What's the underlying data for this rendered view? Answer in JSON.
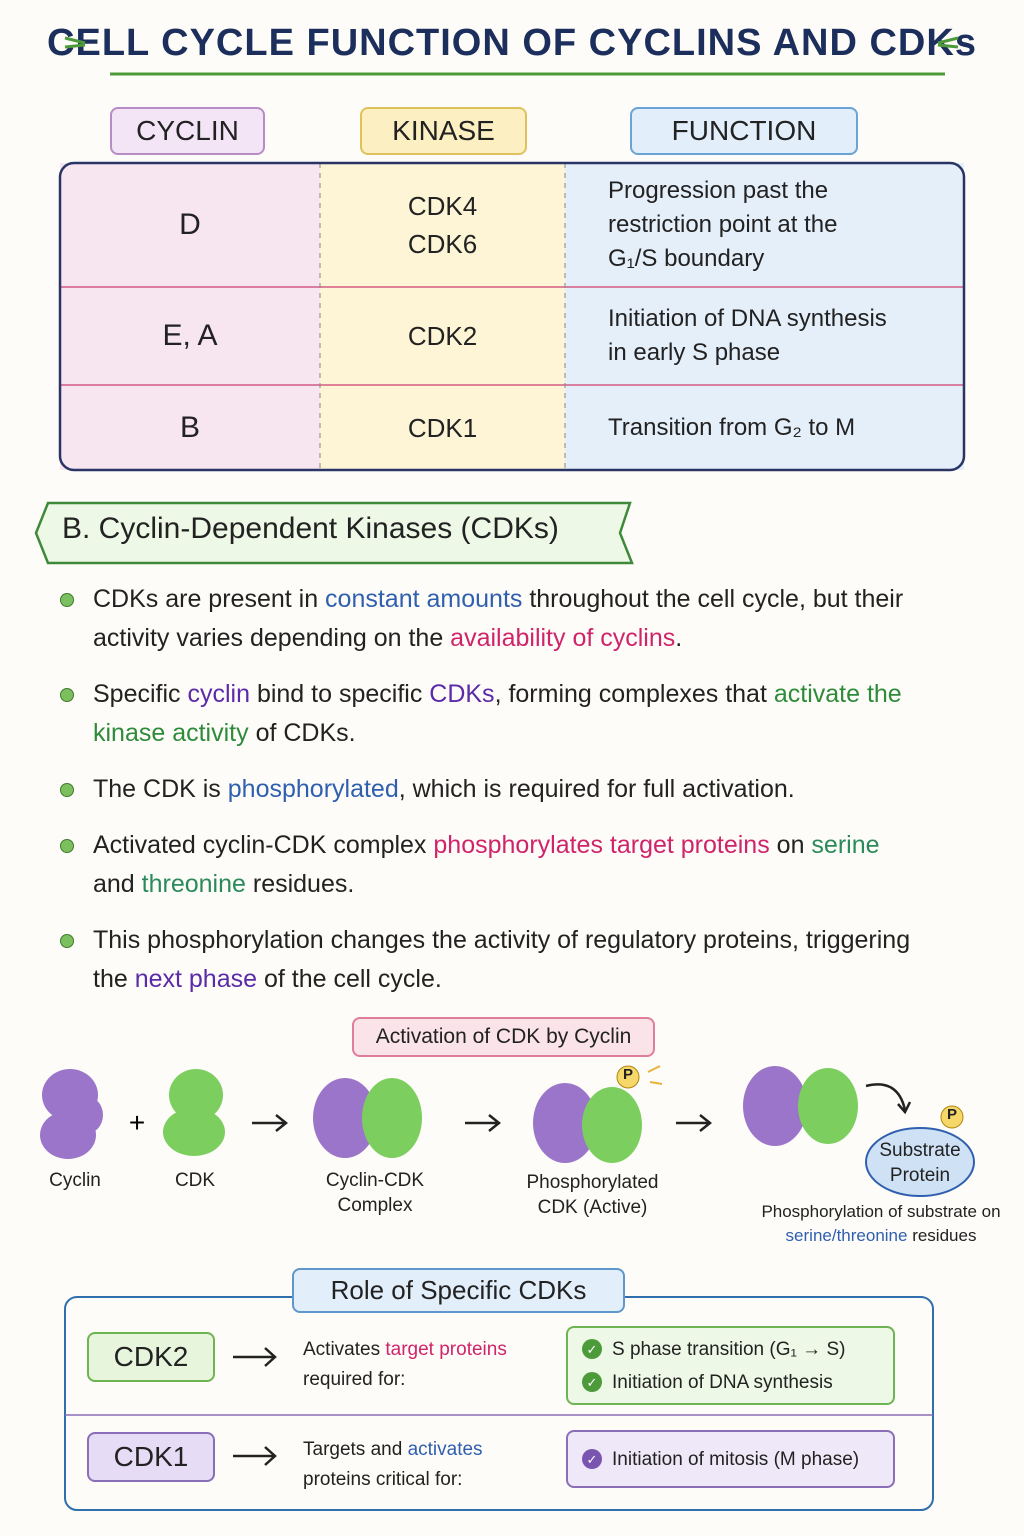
{
  "title": "CELL CYCLE FUNCTION OF CYCLINS AND CDKs",
  "table": {
    "headers": [
      "CYCLIN",
      "KINASE",
      "FUNCTION"
    ],
    "rows": [
      {
        "cyclin": "D",
        "kinase": [
          "CDK4",
          "CDK6"
        ],
        "function": [
          "Progression past the",
          "restriction point at the",
          "G₁/S boundary"
        ]
      },
      {
        "cyclin": "E, A",
        "kinase": [
          "CDK2"
        ],
        "function": [
          "Initiation of DNA synthesis",
          "in early S phase"
        ]
      },
      {
        "cyclin": "B",
        "kinase": [
          "CDK1"
        ],
        "function": [
          "Transition from G₂ to M"
        ]
      }
    ]
  },
  "section": {
    "heading": "B. Cyclin-Dependent Kinases (CDKs)",
    "bullets": [
      [
        {
          "text": "CDKs are present in "
        },
        {
          "text": "constant amounts",
          "color": "#2f5fae"
        },
        {
          "text": " throughout the cell cycle, but their activity varies depending on the "
        },
        {
          "text": "availability of cyclins",
          "color": "#d0246a"
        },
        {
          "text": "."
        }
      ],
      [
        {
          "text": "Specific "
        },
        {
          "text": "cyclin",
          "color": "#5b2aa8"
        },
        {
          "text": " bind to specific "
        },
        {
          "text": "CDKs",
          "color": "#5b2aa8"
        },
        {
          "text": ", forming complexes that "
        },
        {
          "text": "activate the kinase activity",
          "color": "#2e8b3a"
        },
        {
          "text": " of CDKs."
        }
      ],
      [
        {
          "text": "The CDK is "
        },
        {
          "text": "phosphorylated",
          "color": "#2f5fae"
        },
        {
          "text": ", which is required for full activation."
        }
      ],
      [
        {
          "text": "Activated cyclin-CDK complex "
        },
        {
          "text": "phosphorylates target proteins",
          "color": "#d0246a"
        },
        {
          "text": " on "
        },
        {
          "text": "serine",
          "color": "#2b8a5a"
        },
        {
          "text": " and "
        },
        {
          "text": "threonine",
          "color": "#2b8a5a"
        },
        {
          "text": " residues."
        }
      ],
      [
        {
          "text": "This phosphorylation changes the activity of regulatory proteins, triggering the "
        },
        {
          "text": "next phase",
          "color": "#5b2aa8"
        },
        {
          "text": " of the cell cycle."
        }
      ]
    ]
  },
  "diagram": {
    "title": "Activation of CDK by Cyclin",
    "labels": [
      "Cyclin",
      "CDK",
      "Cyclin-CDK Complex",
      "Phosphorylated CDK (Active)"
    ],
    "phosphate": "P",
    "substrate": "Substrate Protein",
    "caption": [
      {
        "text": "Phosphorylation of substrate on "
      },
      {
        "text": "serine/threonine",
        "color": "#2f5fae"
      },
      {
        "text": " residues"
      }
    ]
  },
  "roles": {
    "title": "Role of Specific CDKs",
    "rows": [
      {
        "kinase": "CDK2",
        "description": [
          {
            "text": "Activates "
          },
          {
            "text": "target proteins",
            "color": "#d0246a"
          },
          {
            "text": " required for:"
          }
        ],
        "outcomes": [
          "S phase transition (G₁ → S)",
          "Initiation of DNA synthesis"
        ]
      },
      {
        "kinase": "CDK1",
        "description": [
          {
            "text": "Targets and "
          },
          {
            "text": "activates",
            "color": "#2f5fae"
          },
          {
            "text": " proteins critical for:"
          }
        ],
        "outcomes": [
          "Initiation of mitosis (M phase)"
        ]
      }
    ]
  }
}
